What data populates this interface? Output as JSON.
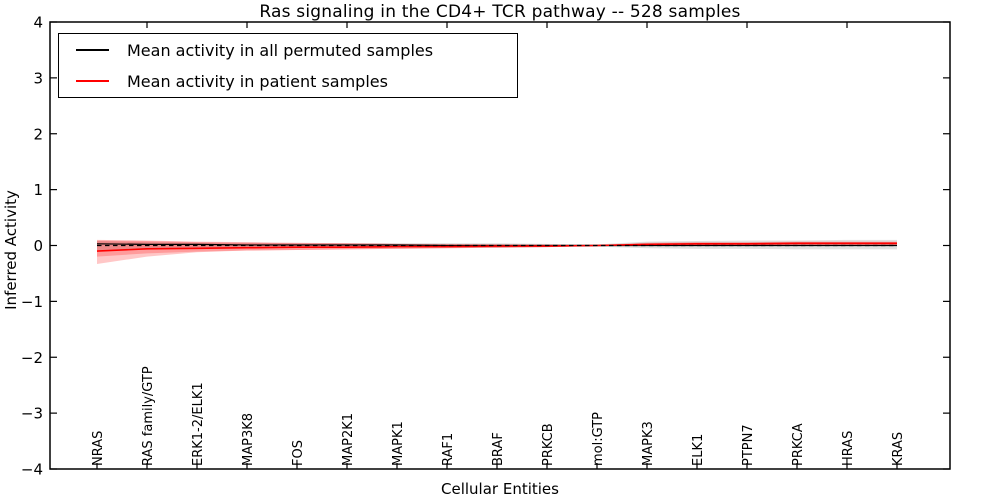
{
  "chart_data": {
    "type": "line",
    "title": "Ras signaling in the CD4+ TCR pathway -- 528 samples",
    "xlabel": "Cellular Entities",
    "ylabel": "Inferred Activity",
    "ylim": [
      -4,
      4
    ],
    "yticks": [
      4,
      3,
      2,
      1,
      0,
      -1,
      -2,
      -3,
      -4
    ],
    "grid": false,
    "categories": [
      "NRAS",
      "RAS family/GTP",
      "ERK1-2/ELK1",
      "MAP3K8",
      "FOS",
      "MAP2K1",
      "MAPK1",
      "RAF1",
      "BRAF",
      "PRKCB",
      "mol:GTP",
      "MAPK3",
      "ELK1",
      "PTPN7",
      "PRKCA",
      "HRAS",
      "KRAS"
    ],
    "legend": {
      "position": "upper-left",
      "entries": [
        {
          "label": "Mean activity in all permuted samples",
          "color": "#000000"
        },
        {
          "label": "Mean activity in patient samples",
          "color": "#ff0000"
        }
      ]
    },
    "series": [
      {
        "name": "Mean activity in all permuted samples",
        "color": "#000000",
        "style": "solid",
        "width": 1.2,
        "values": [
          0.03,
          0.02,
          0.02,
          0.01,
          0.01,
          0.01,
          0.01,
          0.0,
          0.0,
          0.0,
          0.0,
          0.0,
          0.0,
          0.0,
          0.0,
          0.0,
          0.0
        ]
      },
      {
        "name": "Mean activity in patient samples",
        "color": "#ff0000",
        "style": "solid",
        "width": 1.6,
        "values": [
          -0.1,
          -0.06,
          -0.05,
          -0.04,
          -0.03,
          -0.03,
          -0.02,
          -0.02,
          -0.01,
          -0.01,
          0.0,
          0.02,
          0.03,
          0.03,
          0.04,
          0.04,
          0.04
        ]
      }
    ],
    "zero_line": {
      "y": 0,
      "color": "#000000",
      "style": "dashed"
    },
    "bands": [
      {
        "name": "permuted-samples-std-band",
        "color": "#000000",
        "opacity": 0.12,
        "upper": [
          0.08,
          0.06,
          0.05,
          0.05,
          0.04,
          0.04,
          0.04,
          0.04,
          0.04,
          0.03,
          0.02,
          0.07,
          0.08,
          0.09,
          0.09,
          0.1,
          0.1
        ],
        "lower": [
          -0.08,
          -0.06,
          -0.05,
          -0.05,
          -0.04,
          -0.04,
          -0.04,
          -0.04,
          -0.04,
          -0.03,
          -0.02,
          -0.05,
          -0.06,
          -0.06,
          -0.07,
          -0.07,
          -0.07
        ]
      },
      {
        "name": "patient-samples-std-band-outer",
        "color": "#ff0000",
        "opacity": 0.22,
        "upper": [
          0.09,
          0.08,
          0.06,
          0.05,
          0.04,
          0.04,
          0.03,
          0.02,
          0.02,
          0.01,
          0.01,
          0.04,
          0.05,
          0.05,
          0.06,
          0.06,
          0.06
        ],
        "lower": [
          -0.33,
          -0.2,
          -0.12,
          -0.09,
          -0.08,
          -0.07,
          -0.06,
          -0.05,
          -0.04,
          -0.03,
          -0.01,
          -0.01,
          0.0,
          0.0,
          0.0,
          0.01,
          0.01
        ]
      },
      {
        "name": "patient-samples-std-band-inner",
        "color": "#ff0000",
        "opacity": 0.22,
        "upper": [
          0.1,
          0.09,
          0.07,
          0.06,
          0.05,
          0.04,
          0.03,
          0.03,
          0.02,
          0.02,
          0.01,
          0.05,
          0.06,
          0.06,
          0.07,
          0.07,
          0.07
        ],
        "lower": [
          -0.2,
          -0.14,
          -0.11,
          -0.09,
          -0.08,
          -0.07,
          -0.06,
          -0.05,
          -0.04,
          -0.03,
          -0.01,
          -0.01,
          0.0,
          0.0,
          0.01,
          0.01,
          0.01
        ]
      }
    ]
  }
}
